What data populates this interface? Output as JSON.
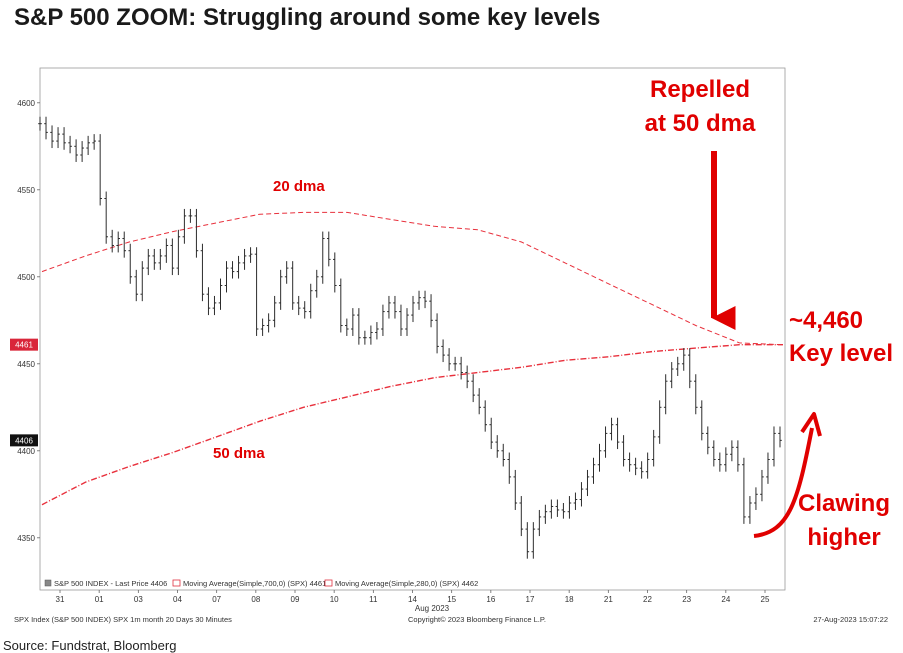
{
  "title": "S&P 500 ZOOM: Struggling around some key levels",
  "source": "Source: Fundstrat, Bloomberg",
  "chart_data": {
    "type": "line",
    "title": "S&P 500 ZOOM: Struggling around some key levels",
    "x_labels": [
      "31",
      "01",
      "03",
      "04",
      "07",
      "08",
      "09",
      "10",
      "11",
      "14",
      "15",
      "16",
      "17",
      "18",
      "21",
      "22",
      "23",
      "24",
      "25"
    ],
    "x_month_label": "Aug 2023",
    "y_ticks": [
      4350,
      4400,
      4450,
      4500,
      4550,
      4600
    ],
    "ylim": [
      4320,
      4620
    ],
    "price_tags": [
      {
        "value": 4461,
        "label": "4461",
        "color": "#d9263a"
      },
      {
        "value": 4406,
        "label": "4406",
        "color": "#111111"
      }
    ],
    "series": [
      {
        "name": "SPX",
        "style": "bars",
        "values": [
          4588,
          4583,
          4578,
          4582,
          4577,
          4575,
          4570,
          4574,
          4577,
          4578,
          4545,
          4523,
          4518,
          4522,
          4515,
          4500,
          4490,
          4505,
          4512,
          4508,
          4512,
          4518,
          4505,
          4523,
          4535,
          4535,
          4515,
          4490,
          4482,
          4485,
          4495,
          4505,
          4503,
          4508,
          4512,
          4513,
          4470,
          4472,
          4475,
          4485,
          4500,
          4505,
          4485,
          4482,
          4480,
          4492,
          4500,
          4522,
          4510,
          4495,
          4472,
          4470,
          4478,
          4465,
          4465,
          4468,
          4470,
          4480,
          4485,
          4480,
          4470,
          4478,
          4485,
          4488,
          4486,
          4475,
          4460,
          4455,
          4450,
          4450,
          4445,
          4440,
          4432,
          4425,
          4415,
          4405,
          4400,
          4395,
          4385,
          4370,
          4355,
          4342,
          4355,
          4362,
          4365,
          4368,
          4366,
          4365,
          4370,
          4372,
          4378,
          4385,
          4392,
          4400,
          4410,
          4415,
          4405,
          4395,
          4392,
          4390,
          4388,
          4395,
          4408,
          4425,
          4440,
          4447,
          4450,
          4455,
          4440,
          4425,
          4410,
          4402,
          4395,
          4392,
          4398,
          4402,
          4392,
          4362,
          4370,
          4375,
          4385,
          4395,
          4410,
          4406
        ]
      },
      {
        "name": "20 dma",
        "style": "dashed",
        "values": [
          4503,
          4512,
          4520,
          4526,
          4531,
          4536,
          4537,
          4537,
          4533,
          4529,
          4527,
          4520,
          4508,
          4496,
          4484,
          4472,
          4462,
          4461
        ]
      },
      {
        "name": "50 dma",
        "style": "dash-dot",
        "values": [
          4369,
          4382,
          4391,
          4399,
          4408,
          4417,
          4425,
          4431,
          4437,
          4442,
          4445,
          4448,
          4452,
          4454,
          4457,
          4459,
          4461,
          4461
        ]
      }
    ],
    "legend": [
      {
        "label": "SPX Index - Last Price",
        "value": "4406"
      },
      {
        "label": "Moving Average(Simple,700,0) (SPX)",
        "value": "4461"
      },
      {
        "label": "Moving Average(Simple,280,0) (SPX)",
        "value": "4462"
      }
    ],
    "legend_prefix": "S&P 500 INDEX - Last Price  4406",
    "legend_ma1": "Moving Average(Simple,700,0) (SPX)  4461",
    "legend_ma2": "Moving Average(Simple,280,0) (SPX)  4462",
    "series_labels": {
      "ma20": "20 dma",
      "ma50": "50 dma"
    },
    "annotations": {
      "repelled_line1": "Repelled",
      "repelled_line2": "at 50 dma",
      "key_level_line1": "~4,460",
      "key_level_line2": "Key level",
      "clawing_line1": "Clawing",
      "clawing_line2": "higher"
    },
    "footer": {
      "left": "SPX Index (S&P 500 INDEX) SPX 1m month 20 Days 30 Minutes",
      "center": "Copyright© 2023 Bloomberg Finance L.P.",
      "right": "27-Aug-2023 15:07:22"
    },
    "grid": false
  }
}
